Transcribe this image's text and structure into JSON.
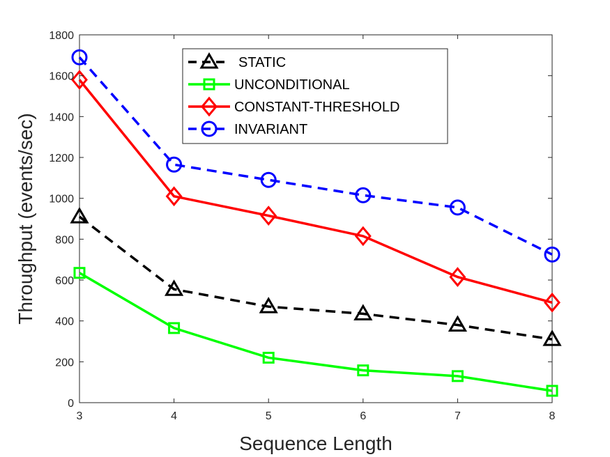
{
  "chart_data": {
    "type": "line",
    "title": "",
    "xlabel": "Sequence Length",
    "ylabel": "Throughput (events/sec)",
    "x": [
      3,
      4,
      5,
      6,
      7,
      8
    ],
    "xlim": [
      3,
      8
    ],
    "ylim": [
      0,
      1800
    ],
    "xticks": [
      "3",
      "4",
      "5",
      "6",
      "7",
      "8"
    ],
    "yticks": [
      "0",
      "200",
      "400",
      "600",
      "800",
      "1000",
      "1200",
      "1400",
      "1600",
      "1800"
    ],
    "grid": false,
    "legend_position": "top-center",
    "series": [
      {
        "key": "static",
        "name": "STATIC",
        "values": [
          910,
          555,
          470,
          435,
          380,
          310
        ],
        "color": "#000000",
        "dash": "dashed",
        "marker": "triangle"
      },
      {
        "key": "unconditional",
        "name": "UNCONDITIONAL",
        "values": [
          635,
          365,
          220,
          158,
          130,
          58
        ],
        "color": "#00ff00",
        "dash": "solid",
        "marker": "square"
      },
      {
        "key": "constant-threshold",
        "name": "CONSTANT-THRESHOLD",
        "values": [
          1580,
          1010,
          915,
          815,
          615,
          490
        ],
        "color": "#ff0000",
        "dash": "solid",
        "marker": "diamond"
      },
      {
        "key": "invariant",
        "name": "INVARIANT",
        "values": [
          1690,
          1165,
          1090,
          1015,
          955,
          725
        ],
        "color": "#0000ff",
        "dash": "dashed",
        "marker": "circle"
      }
    ]
  }
}
